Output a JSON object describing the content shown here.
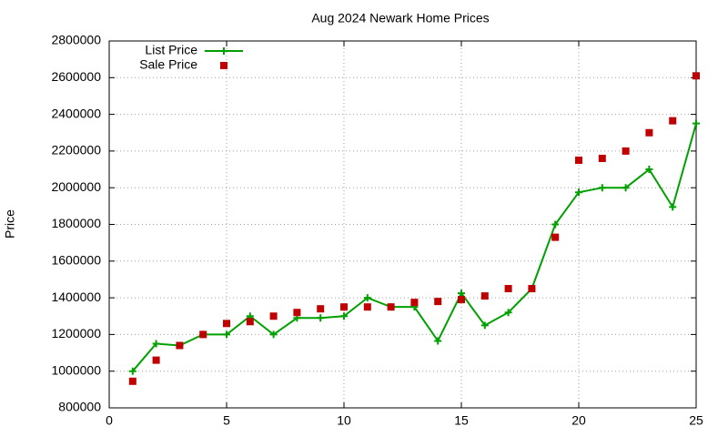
{
  "chart_data": {
    "type": "line",
    "title": "Aug 2024 Newark Home Prices",
    "y_label": "Price",
    "x": [
      1,
      2,
      3,
      4,
      5,
      6,
      7,
      8,
      9,
      10,
      11,
      12,
      13,
      14,
      15,
      16,
      17,
      18,
      19,
      20,
      21,
      22,
      23,
      24,
      25
    ],
    "series": [
      {
        "name": "List Price",
        "color": "#00a000",
        "style": "linespoints",
        "values": [
          1000000,
          1150000,
          1140000,
          1200000,
          1200000,
          1300000,
          1200000,
          1290000,
          1290000,
          1300000,
          1400000,
          1350000,
          1350000,
          1165000,
          1425000,
          1250000,
          1320000,
          1450000,
          1800000,
          1975000,
          2000000,
          2000000,
          2100000,
          1895000,
          2350000
        ]
      },
      {
        "name": "Sale Price",
        "color": "#c00000",
        "style": "points",
        "values": [
          945000,
          1060000,
          1140000,
          1200000,
          1260000,
          1270000,
          1300000,
          1320000,
          1340000,
          1350000,
          1350000,
          1350000,
          1375000,
          1380000,
          1390000,
          1410000,
          1450000,
          1450000,
          1730000,
          2150000,
          2160000,
          2200000,
          2300000,
          2365000,
          2610000
        ]
      }
    ],
    "xlim": [
      0,
      25
    ],
    "xticks": [
      0,
      5,
      10,
      15,
      20,
      25
    ],
    "ylim": [
      800000,
      2800000
    ],
    "yticks": [
      800000,
      1000000,
      1200000,
      1400000,
      1600000,
      1800000,
      2000000,
      2200000,
      2400000,
      2600000,
      2800000
    ],
    "grid": true,
    "legend": "top-left"
  }
}
